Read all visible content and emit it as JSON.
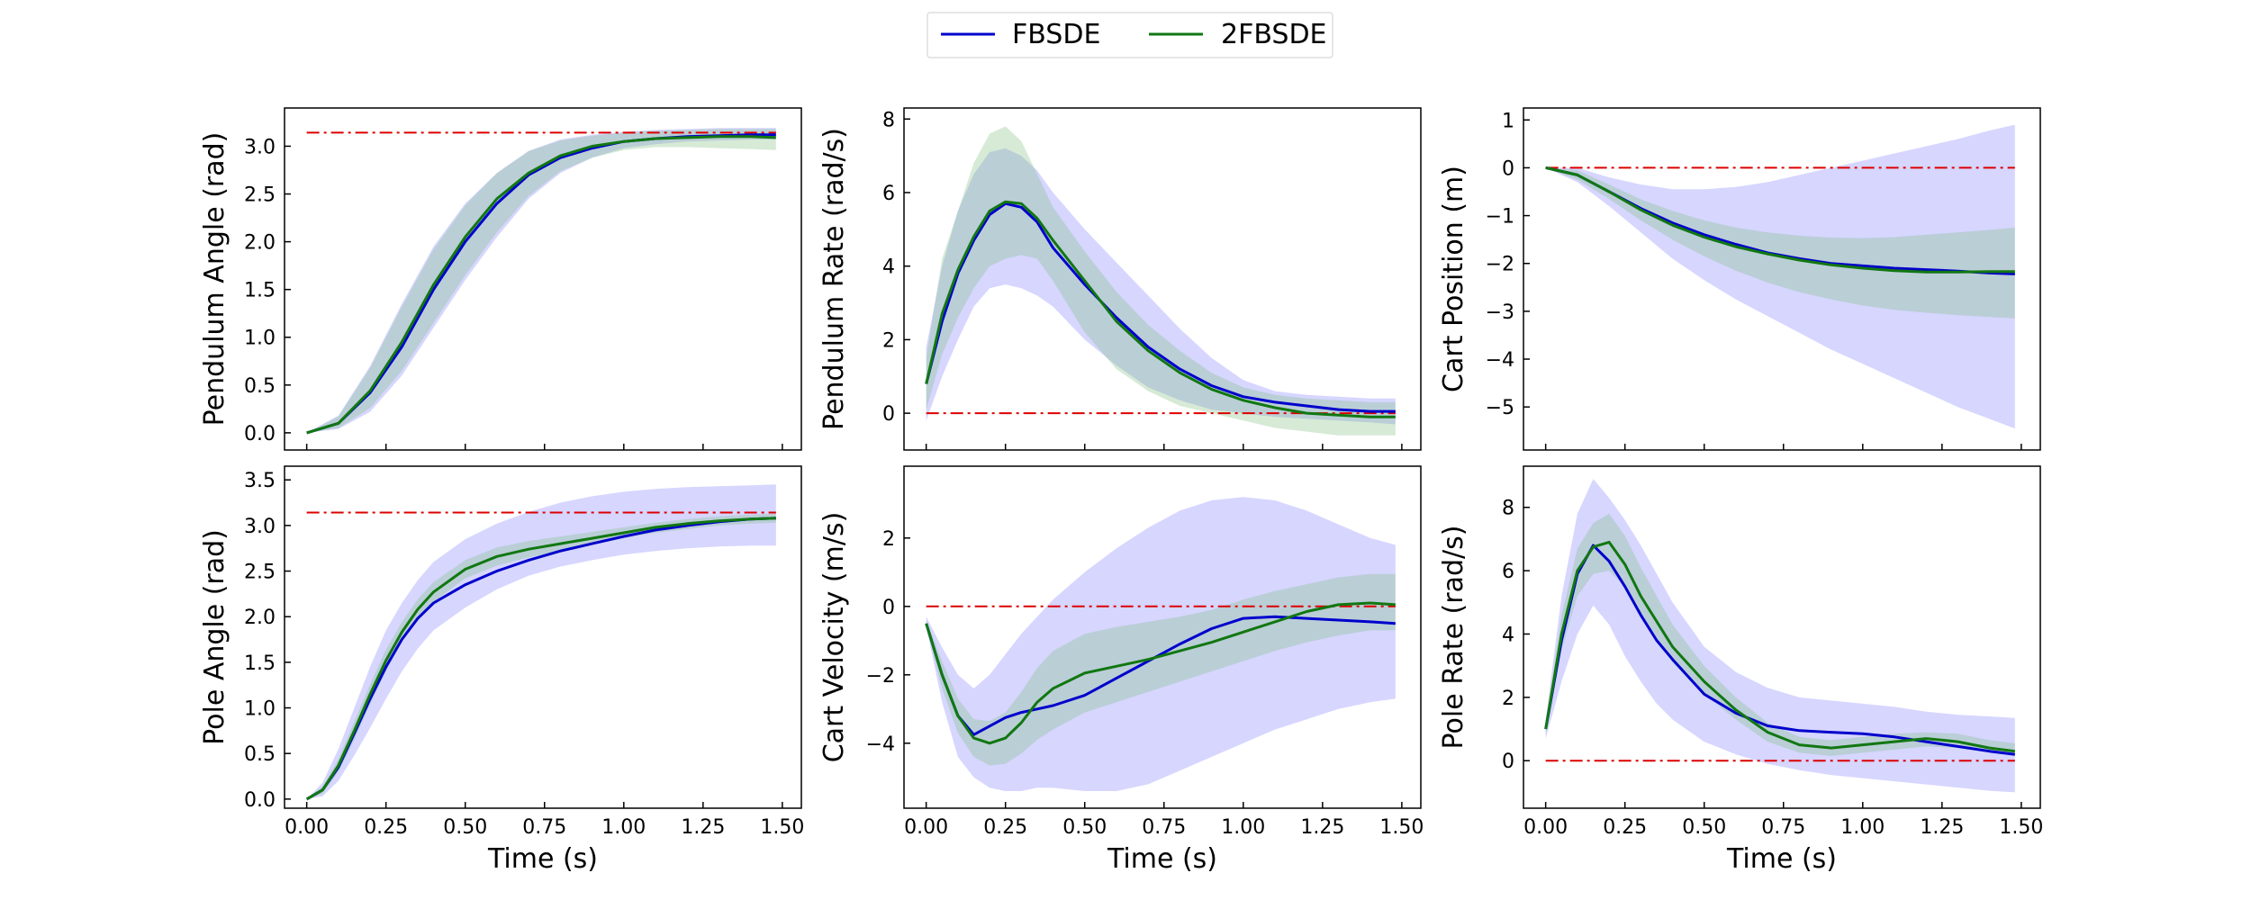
{
  "legend": {
    "entries": [
      {
        "label": "FBSDE",
        "color": "#0000cc"
      },
      {
        "label": "2FBSDE",
        "color": "#117711"
      }
    ],
    "placement": "top-center"
  },
  "colors": {
    "fbsde_line": "#0000cc",
    "fbsde_band": "#7f7fff",
    "twofbsde_line": "#117711",
    "twofbsde_band": "#7fbf7f",
    "target": "#dd0000"
  },
  "chart_data": [
    {
      "type": "line",
      "ylabel": "Pendulum Angle (rad)",
      "xlabel": "",
      "xlim": [
        -0.07,
        1.56
      ],
      "ylim": [
        -0.18,
        3.4
      ],
      "xticks": [
        0.0,
        0.25,
        0.5,
        0.75,
        1.0,
        1.25,
        1.5
      ],
      "xticklabels": [],
      "yticks": [
        0.0,
        0.5,
        1.0,
        1.5,
        2.0,
        2.5,
        3.0
      ],
      "yticklabels": [
        "0.0",
        "0.5",
        "1.0",
        "1.5",
        "2.0",
        "2.5",
        "3.0"
      ],
      "target": 3.14159,
      "x": [
        0.0,
        0.1,
        0.2,
        0.3,
        0.4,
        0.5,
        0.6,
        0.7,
        0.8,
        0.9,
        1.0,
        1.1,
        1.2,
        1.3,
        1.4,
        1.48
      ],
      "series": [
        {
          "name": "FBSDE",
          "mean": [
            0.0,
            0.1,
            0.42,
            0.9,
            1.5,
            2.0,
            2.4,
            2.7,
            2.88,
            2.98,
            3.05,
            3.08,
            3.1,
            3.11,
            3.12,
            3.12
          ],
          "lower": [
            0.0,
            0.04,
            0.22,
            0.6,
            1.1,
            1.6,
            2.05,
            2.45,
            2.72,
            2.88,
            2.98,
            3.02,
            3.05,
            3.06,
            3.07,
            3.07
          ],
          "upper": [
            0.0,
            0.18,
            0.7,
            1.35,
            1.95,
            2.4,
            2.72,
            2.95,
            3.07,
            3.12,
            3.15,
            3.17,
            3.18,
            3.19,
            3.19,
            3.19
          ]
        },
        {
          "name": "2FBSDE",
          "mean": [
            0.0,
            0.1,
            0.44,
            0.95,
            1.55,
            2.05,
            2.45,
            2.72,
            2.9,
            3.0,
            3.05,
            3.08,
            3.09,
            3.1,
            3.1,
            3.09
          ],
          "lower": [
            0.0,
            0.05,
            0.26,
            0.65,
            1.15,
            1.65,
            2.1,
            2.48,
            2.74,
            2.88,
            2.96,
            2.99,
            2.99,
            2.98,
            2.97,
            2.96
          ],
          "upper": [
            0.0,
            0.17,
            0.68,
            1.32,
            1.92,
            2.38,
            2.72,
            2.95,
            3.06,
            3.11,
            3.14,
            3.16,
            3.17,
            3.18,
            3.18,
            3.18
          ]
        }
      ]
    },
    {
      "type": "line",
      "ylabel": "Pendulum Rate (rad/s)",
      "xlabel": "",
      "xlim": [
        -0.07,
        1.56
      ],
      "ylim": [
        -1.0,
        8.3
      ],
      "xticks": [
        0.0,
        0.25,
        0.5,
        0.75,
        1.0,
        1.25,
        1.5
      ],
      "xticklabels": [],
      "yticks": [
        0,
        2,
        4,
        6,
        8
      ],
      "yticklabels": [
        "0",
        "2",
        "4",
        "6",
        "8"
      ],
      "target": 0,
      "x": [
        0.0,
        0.05,
        0.1,
        0.15,
        0.2,
        0.25,
        0.3,
        0.35,
        0.4,
        0.5,
        0.6,
        0.7,
        0.8,
        0.9,
        1.0,
        1.1,
        1.2,
        1.3,
        1.4,
        1.48
      ],
      "series": [
        {
          "name": "FBSDE",
          "mean": [
            0.8,
            2.5,
            3.8,
            4.7,
            5.4,
            5.7,
            5.6,
            5.2,
            4.5,
            3.5,
            2.6,
            1.8,
            1.2,
            0.75,
            0.45,
            0.3,
            0.2,
            0.1,
            0.05,
            0.05
          ],
          "lower": [
            -0.2,
            1.0,
            2.0,
            2.9,
            3.4,
            3.5,
            3.4,
            3.2,
            2.9,
            2.0,
            1.3,
            0.7,
            0.35,
            0.1,
            0.0,
            -0.1,
            -0.15,
            -0.2,
            -0.25,
            -0.3
          ],
          "upper": [
            1.8,
            4.0,
            5.5,
            6.5,
            7.1,
            7.2,
            7.0,
            6.6,
            6.0,
            5.0,
            4.1,
            3.2,
            2.3,
            1.5,
            0.9,
            0.6,
            0.5,
            0.45,
            0.4,
            0.4
          ]
        },
        {
          "name": "2FBSDE",
          "mean": [
            0.8,
            2.7,
            3.9,
            4.8,
            5.5,
            5.75,
            5.7,
            5.3,
            4.7,
            3.6,
            2.5,
            1.7,
            1.1,
            0.65,
            0.35,
            0.15,
            0.0,
            -0.05,
            -0.1,
            -0.1
          ],
          "lower": [
            0.1,
            1.6,
            2.6,
            3.4,
            4.0,
            4.2,
            4.3,
            4.2,
            3.6,
            2.2,
            1.2,
            0.6,
            0.2,
            0.0,
            -0.2,
            -0.4,
            -0.5,
            -0.6,
            -0.6,
            -0.6
          ],
          "upper": [
            1.5,
            4.2,
            5.5,
            6.8,
            7.6,
            7.8,
            7.4,
            6.5,
            5.6,
            4.4,
            3.3,
            2.4,
            1.7,
            1.1,
            0.7,
            0.5,
            0.4,
            0.35,
            0.3,
            0.3
          ]
        }
      ]
    },
    {
      "type": "line",
      "ylabel": "Cart Position (m)",
      "xlabel": "",
      "xlim": [
        -0.07,
        1.56
      ],
      "ylim": [
        -5.9,
        1.25
      ],
      "xticks": [
        0.0,
        0.25,
        0.5,
        0.75,
        1.0,
        1.25,
        1.5
      ],
      "xticklabels": [],
      "yticks": [
        -5,
        -4,
        -3,
        -2,
        -1,
        0,
        1
      ],
      "yticklabels": [
        "−5",
        "−4",
        "−3",
        "−2",
        "−1",
        "0",
        "1"
      ],
      "target": 0,
      "x": [
        0.0,
        0.1,
        0.2,
        0.3,
        0.4,
        0.5,
        0.6,
        0.7,
        0.8,
        0.9,
        1.0,
        1.1,
        1.2,
        1.3,
        1.4,
        1.48
      ],
      "series": [
        {
          "name": "FBSDE",
          "mean": [
            0.0,
            -0.15,
            -0.5,
            -0.85,
            -1.15,
            -1.4,
            -1.6,
            -1.78,
            -1.9,
            -2.0,
            -2.05,
            -2.1,
            -2.13,
            -2.16,
            -2.2,
            -2.22
          ],
          "lower": [
            0.0,
            -0.3,
            -0.8,
            -1.35,
            -1.9,
            -2.35,
            -2.75,
            -3.1,
            -3.45,
            -3.8,
            -4.1,
            -4.4,
            -4.7,
            -5.0,
            -5.25,
            -5.45
          ],
          "upper": [
            0.0,
            0.0,
            -0.2,
            -0.35,
            -0.45,
            -0.45,
            -0.4,
            -0.3,
            -0.15,
            0.0,
            0.15,
            0.3,
            0.45,
            0.6,
            0.78,
            0.9
          ]
        },
        {
          "name": "2FBSDE",
          "mean": [
            0.0,
            -0.15,
            -0.5,
            -0.88,
            -1.2,
            -1.45,
            -1.65,
            -1.8,
            -1.93,
            -2.03,
            -2.1,
            -2.15,
            -2.18,
            -2.18,
            -2.17,
            -2.17
          ],
          "lower": [
            0.0,
            -0.25,
            -0.65,
            -1.1,
            -1.5,
            -1.85,
            -2.15,
            -2.4,
            -2.6,
            -2.75,
            -2.88,
            -2.97,
            -3.03,
            -3.08,
            -3.12,
            -3.15
          ],
          "upper": [
            0.0,
            -0.05,
            -0.35,
            -0.66,
            -0.9,
            -1.1,
            -1.25,
            -1.35,
            -1.42,
            -1.46,
            -1.47,
            -1.45,
            -1.4,
            -1.35,
            -1.3,
            -1.25
          ]
        }
      ]
    },
    {
      "type": "line",
      "ylabel": "Pole Angle (rad)",
      "xlabel": "Time (s)",
      "xlim": [
        -0.07,
        1.56
      ],
      "ylim": [
        -0.1,
        3.65
      ],
      "xticks": [
        0.0,
        0.25,
        0.5,
        0.75,
        1.0,
        1.25,
        1.5
      ],
      "xticklabels": [
        "0.00",
        "0.25",
        "0.50",
        "0.75",
        "1.00",
        "1.25",
        "1.50"
      ],
      "yticks": [
        0.0,
        0.5,
        1.0,
        1.5,
        2.0,
        2.5,
        3.0,
        3.5
      ],
      "yticklabels": [
        "0.0",
        "0.5",
        "1.0",
        "1.5",
        "2.0",
        "2.5",
        "3.0",
        "3.5"
      ],
      "target": 3.14159,
      "x": [
        0.0,
        0.05,
        0.1,
        0.15,
        0.2,
        0.25,
        0.3,
        0.35,
        0.4,
        0.5,
        0.6,
        0.7,
        0.8,
        0.9,
        1.0,
        1.1,
        1.2,
        1.3,
        1.4,
        1.48
      ],
      "series": [
        {
          "name": "FBSDE",
          "mean": [
            0.0,
            0.1,
            0.35,
            0.72,
            1.1,
            1.45,
            1.75,
            1.98,
            2.15,
            2.35,
            2.5,
            2.62,
            2.72,
            2.8,
            2.88,
            2.95,
            3.0,
            3.04,
            3.07,
            3.08
          ],
          "lower": [
            0.0,
            0.03,
            0.2,
            0.48,
            0.78,
            1.1,
            1.4,
            1.65,
            1.85,
            2.1,
            2.3,
            2.45,
            2.55,
            2.62,
            2.68,
            2.72,
            2.75,
            2.77,
            2.78,
            2.78
          ],
          "upper": [
            0.0,
            0.18,
            0.55,
            1.0,
            1.45,
            1.85,
            2.15,
            2.4,
            2.6,
            2.85,
            3.02,
            3.15,
            3.25,
            3.32,
            3.37,
            3.4,
            3.42,
            3.43,
            3.44,
            3.45
          ]
        },
        {
          "name": "2FBSDE",
          "mean": [
            0.0,
            0.1,
            0.37,
            0.75,
            1.15,
            1.52,
            1.83,
            2.08,
            2.27,
            2.52,
            2.66,
            2.74,
            2.8,
            2.86,
            2.92,
            2.98,
            3.02,
            3.05,
            3.07,
            3.08
          ],
          "lower": [
            0.0,
            0.06,
            0.3,
            0.65,
            1.04,
            1.4,
            1.72,
            1.97,
            2.16,
            2.42,
            2.56,
            2.65,
            2.72,
            2.79,
            2.86,
            2.92,
            2.96,
            3.0,
            3.02,
            3.03
          ],
          "upper": [
            0.0,
            0.14,
            0.44,
            0.85,
            1.26,
            1.64,
            1.94,
            2.19,
            2.38,
            2.62,
            2.76,
            2.83,
            2.88,
            2.93,
            2.98,
            3.03,
            3.07,
            3.1,
            3.12,
            3.13
          ]
        }
      ]
    },
    {
      "type": "line",
      "ylabel": "Cart Velocity (m/s)",
      "xlabel": "Time (s)",
      "xlim": [
        -0.07,
        1.56
      ],
      "ylim": [
        -5.9,
        4.1
      ],
      "xticks": [
        0.0,
        0.25,
        0.5,
        0.75,
        1.0,
        1.25,
        1.5
      ],
      "xticklabels": [
        "0.00",
        "0.25",
        "0.50",
        "0.75",
        "1.00",
        "1.25",
        "1.50"
      ],
      "yticks": [
        -4,
        -2,
        0,
        2
      ],
      "yticklabels": [
        "−4",
        "−2",
        "0",
        "2"
      ],
      "target": 0,
      "x": [
        0.0,
        0.05,
        0.1,
        0.15,
        0.2,
        0.25,
        0.3,
        0.35,
        0.4,
        0.5,
        0.6,
        0.7,
        0.8,
        0.9,
        1.0,
        1.1,
        1.2,
        1.3,
        1.4,
        1.48
      ],
      "series": [
        {
          "name": "FBSDE",
          "mean": [
            -0.5,
            -2.0,
            -3.2,
            -3.75,
            -3.5,
            -3.25,
            -3.1,
            -3.0,
            -2.9,
            -2.6,
            -2.1,
            -1.6,
            -1.1,
            -0.65,
            -0.35,
            -0.3,
            -0.35,
            -0.4,
            -0.45,
            -0.5
          ],
          "lower": [
            -0.6,
            -2.8,
            -4.4,
            -5.0,
            -5.3,
            -5.4,
            -5.4,
            -5.3,
            -5.3,
            -5.4,
            -5.4,
            -5.2,
            -4.8,
            -4.4,
            -4.0,
            -3.6,
            -3.3,
            -3.0,
            -2.8,
            -2.7
          ],
          "upper": [
            -0.3,
            -1.2,
            -2.0,
            -2.4,
            -2.0,
            -1.4,
            -0.8,
            -0.3,
            0.2,
            1.0,
            1.7,
            2.3,
            2.8,
            3.1,
            3.2,
            3.1,
            2.8,
            2.4,
            2.0,
            1.8
          ]
        },
        {
          "name": "2FBSDE",
          "mean": [
            -0.5,
            -2.0,
            -3.2,
            -3.85,
            -4.0,
            -3.85,
            -3.4,
            -2.8,
            -2.4,
            -1.95,
            -1.75,
            -1.55,
            -1.3,
            -1.05,
            -0.75,
            -0.45,
            -0.15,
            0.05,
            0.1,
            0.05
          ],
          "lower": [
            -0.6,
            -2.4,
            -3.7,
            -4.4,
            -4.65,
            -4.6,
            -4.3,
            -3.9,
            -3.6,
            -3.1,
            -2.8,
            -2.5,
            -2.2,
            -1.9,
            -1.6,
            -1.3,
            -1.05,
            -0.85,
            -0.7,
            -0.7
          ],
          "upper": [
            -0.4,
            -1.6,
            -2.7,
            -3.3,
            -3.35,
            -3.1,
            -2.5,
            -1.8,
            -1.3,
            -0.8,
            -0.6,
            -0.45,
            -0.3,
            -0.1,
            0.2,
            0.45,
            0.65,
            0.85,
            0.95,
            0.95
          ]
        }
      ]
    },
    {
      "type": "line",
      "ylabel": "Pole Rate (rad/s)",
      "xlabel": "Time (s)",
      "xlim": [
        -0.07,
        1.56
      ],
      "ylim": [
        -1.5,
        9.3
      ],
      "xticks": [
        0.0,
        0.25,
        0.5,
        0.75,
        1.0,
        1.25,
        1.5
      ],
      "xticklabels": [
        "0.00",
        "0.25",
        "0.50",
        "0.75",
        "1.00",
        "1.25",
        "1.50"
      ],
      "yticks": [
        0,
        2,
        4,
        6,
        8
      ],
      "yticklabels": [
        "0",
        "2",
        "4",
        "6",
        "8"
      ],
      "target": 0,
      "x": [
        0.0,
        0.05,
        0.1,
        0.15,
        0.2,
        0.25,
        0.3,
        0.35,
        0.4,
        0.5,
        0.6,
        0.7,
        0.8,
        0.9,
        1.0,
        1.1,
        1.2,
        1.3,
        1.4,
        1.48
      ],
      "series": [
        {
          "name": "FBSDE",
          "mean": [
            1.0,
            3.8,
            5.9,
            6.8,
            6.3,
            5.5,
            4.6,
            3.8,
            3.2,
            2.1,
            1.5,
            1.1,
            0.95,
            0.9,
            0.85,
            0.75,
            0.6,
            0.45,
            0.3,
            0.2
          ],
          "lower": [
            0.7,
            2.5,
            4.0,
            4.9,
            4.3,
            3.3,
            2.5,
            1.8,
            1.3,
            0.6,
            0.2,
            -0.1,
            -0.3,
            -0.45,
            -0.55,
            -0.65,
            -0.75,
            -0.85,
            -0.95,
            -1.0
          ],
          "upper": [
            1.3,
            5.2,
            7.8,
            8.9,
            8.3,
            7.6,
            6.8,
            5.9,
            5.0,
            3.6,
            2.8,
            2.3,
            2.0,
            1.9,
            1.8,
            1.7,
            1.55,
            1.45,
            1.4,
            1.35
          ]
        },
        {
          "name": "2FBSDE",
          "mean": [
            1.0,
            4.0,
            6.0,
            6.75,
            6.9,
            6.2,
            5.2,
            4.4,
            3.6,
            2.5,
            1.6,
            0.9,
            0.5,
            0.4,
            0.5,
            0.6,
            0.7,
            0.6,
            0.4,
            0.3
          ],
          "lower": [
            0.8,
            3.5,
            5.2,
            5.9,
            6.0,
            5.5,
            4.6,
            3.9,
            3.1,
            2.1,
            1.3,
            0.6,
            0.25,
            0.15,
            0.25,
            0.35,
            0.45,
            0.4,
            0.25,
            0.2
          ],
          "upper": [
            1.2,
            4.6,
            6.7,
            7.5,
            7.8,
            7.1,
            6.1,
            5.2,
            4.3,
            3.0,
            2.0,
            1.2,
            0.75,
            0.65,
            0.75,
            0.85,
            0.9,
            0.85,
            0.65,
            0.55
          ]
        }
      ]
    }
  ]
}
